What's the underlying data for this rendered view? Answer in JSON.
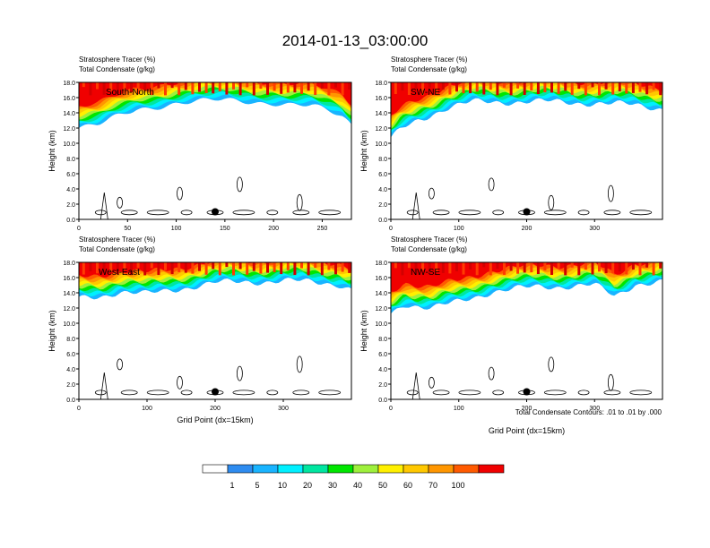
{
  "figure": {
    "title": "2014-01-13_03:00:00",
    "footnote": "Total Condensate Contours: .01 to .01 by .000"
  },
  "colorbar": {
    "labels": [
      "1",
      "5",
      "10",
      "20",
      "30",
      "40",
      "50",
      "60",
      "70",
      "100"
    ],
    "colors": [
      "#ffffff",
      "#2e8cf0",
      "#19b4ff",
      "#00f0ff",
      "#00e6a0",
      "#00e600",
      "#9ef03c",
      "#fff000",
      "#ffc800",
      "#ff9600",
      "#ff5a00",
      "#f00000"
    ]
  },
  "chart_data": [
    {
      "type": "cross-section",
      "label": "South-North",
      "header": [
        "Stratosphere Tracer   (%)",
        "Total Condensate   (g/kg)"
      ],
      "ylabel": "Height (km)",
      "xlabel": "",
      "xlim": [
        0,
        280
      ],
      "ylim": [
        0,
        18
      ],
      "xticks": [
        "0",
        "50",
        "100",
        "150",
        "200",
        "250"
      ],
      "yticks": [
        "0.0",
        "2.0",
        "4.0",
        "6.0",
        "8.0",
        "10.0",
        "12.0",
        "14.0",
        "16.0",
        "18.0"
      ],
      "tracer_base_km": [
        [
          0,
          12.0
        ],
        [
          20,
          12.3
        ],
        [
          35,
          13.2
        ],
        [
          60,
          14.5
        ],
        [
          100,
          15.3
        ],
        [
          150,
          15.6
        ],
        [
          200,
          15.4
        ],
        [
          240,
          14.8
        ],
        [
          270,
          13.5
        ],
        [
          280,
          12.4
        ]
      ],
      "marker": [
        140,
        1.0
      ]
    },
    {
      "type": "cross-section",
      "label": "SW-NE",
      "header": [
        "Stratosphere Tracer   (%)",
        "Total Condensate   (g/kg)"
      ],
      "ylabel": "Height (km)",
      "xlabel": "",
      "xlim": [
        0,
        400
      ],
      "ylim": [
        0,
        18
      ],
      "xticks": [
        "0",
        "100",
        "200",
        "300"
      ],
      "yticks": [
        "0.0",
        "2.0",
        "4.0",
        "6.0",
        "8.0",
        "10.0",
        "12.0",
        "14.0",
        "16.0",
        "18.0"
      ],
      "tracer_base_km": [
        [
          0,
          10.5
        ],
        [
          15,
          11.8
        ],
        [
          40,
          13.0
        ],
        [
          80,
          14.6
        ],
        [
          120,
          15.4
        ],
        [
          200,
          15.5
        ],
        [
          300,
          15.3
        ],
        [
          360,
          15.0
        ],
        [
          400,
          14.6
        ]
      ],
      "marker": [
        200,
        1.0
      ]
    },
    {
      "type": "cross-section",
      "label": "West-East",
      "header": [
        "Stratosphere Tracer   (%)",
        "Total Condensate   (g/kg)"
      ],
      "ylabel": "Height (km)",
      "xlabel": "Grid Point (dx=15km)",
      "xlim": [
        0,
        400
      ],
      "ylim": [
        0,
        18
      ],
      "xticks": [
        "0",
        "100",
        "200",
        "300"
      ],
      "yticks": [
        "0.0",
        "2.0",
        "4.0",
        "6.0",
        "8.0",
        "10.0",
        "12.0",
        "14.0",
        "16.0",
        "18.0"
      ],
      "tracer_base_km": [
        [
          0,
          13.2
        ],
        [
          30,
          13.5
        ],
        [
          60,
          14.2
        ],
        [
          100,
          13.8
        ],
        [
          150,
          14.6
        ],
        [
          200,
          15.3
        ],
        [
          300,
          15.6
        ],
        [
          380,
          15.2
        ],
        [
          400,
          14.5
        ]
      ],
      "marker": [
        200,
        1.0
      ]
    },
    {
      "type": "cross-section",
      "label": "NW-SE",
      "header": [
        "Stratosphere Tracer   (%)",
        "Total Condensate   (g/kg)"
      ],
      "ylabel": "Height (km)",
      "xlabel": "Grid Point (dx=15km)",
      "xlim": [
        0,
        400
      ],
      "ylim": [
        0,
        18
      ],
      "xticks": [
        "0",
        "100",
        "200",
        "300"
      ],
      "yticks": [
        "0.0",
        "2.0",
        "4.0",
        "6.0",
        "8.0",
        "10.0",
        "12.0",
        "14.0",
        "16.0",
        "18.0"
      ],
      "tracer_base_km": [
        [
          0,
          11.2
        ],
        [
          20,
          12.6
        ],
        [
          60,
          12.0
        ],
        [
          100,
          12.8
        ],
        [
          150,
          14.2
        ],
        [
          220,
          14.8
        ],
        [
          300,
          15.0
        ],
        [
          330,
          13.5
        ],
        [
          360,
          15.2
        ],
        [
          400,
          15.4
        ]
      ],
      "marker": [
        200,
        1.0
      ]
    }
  ]
}
